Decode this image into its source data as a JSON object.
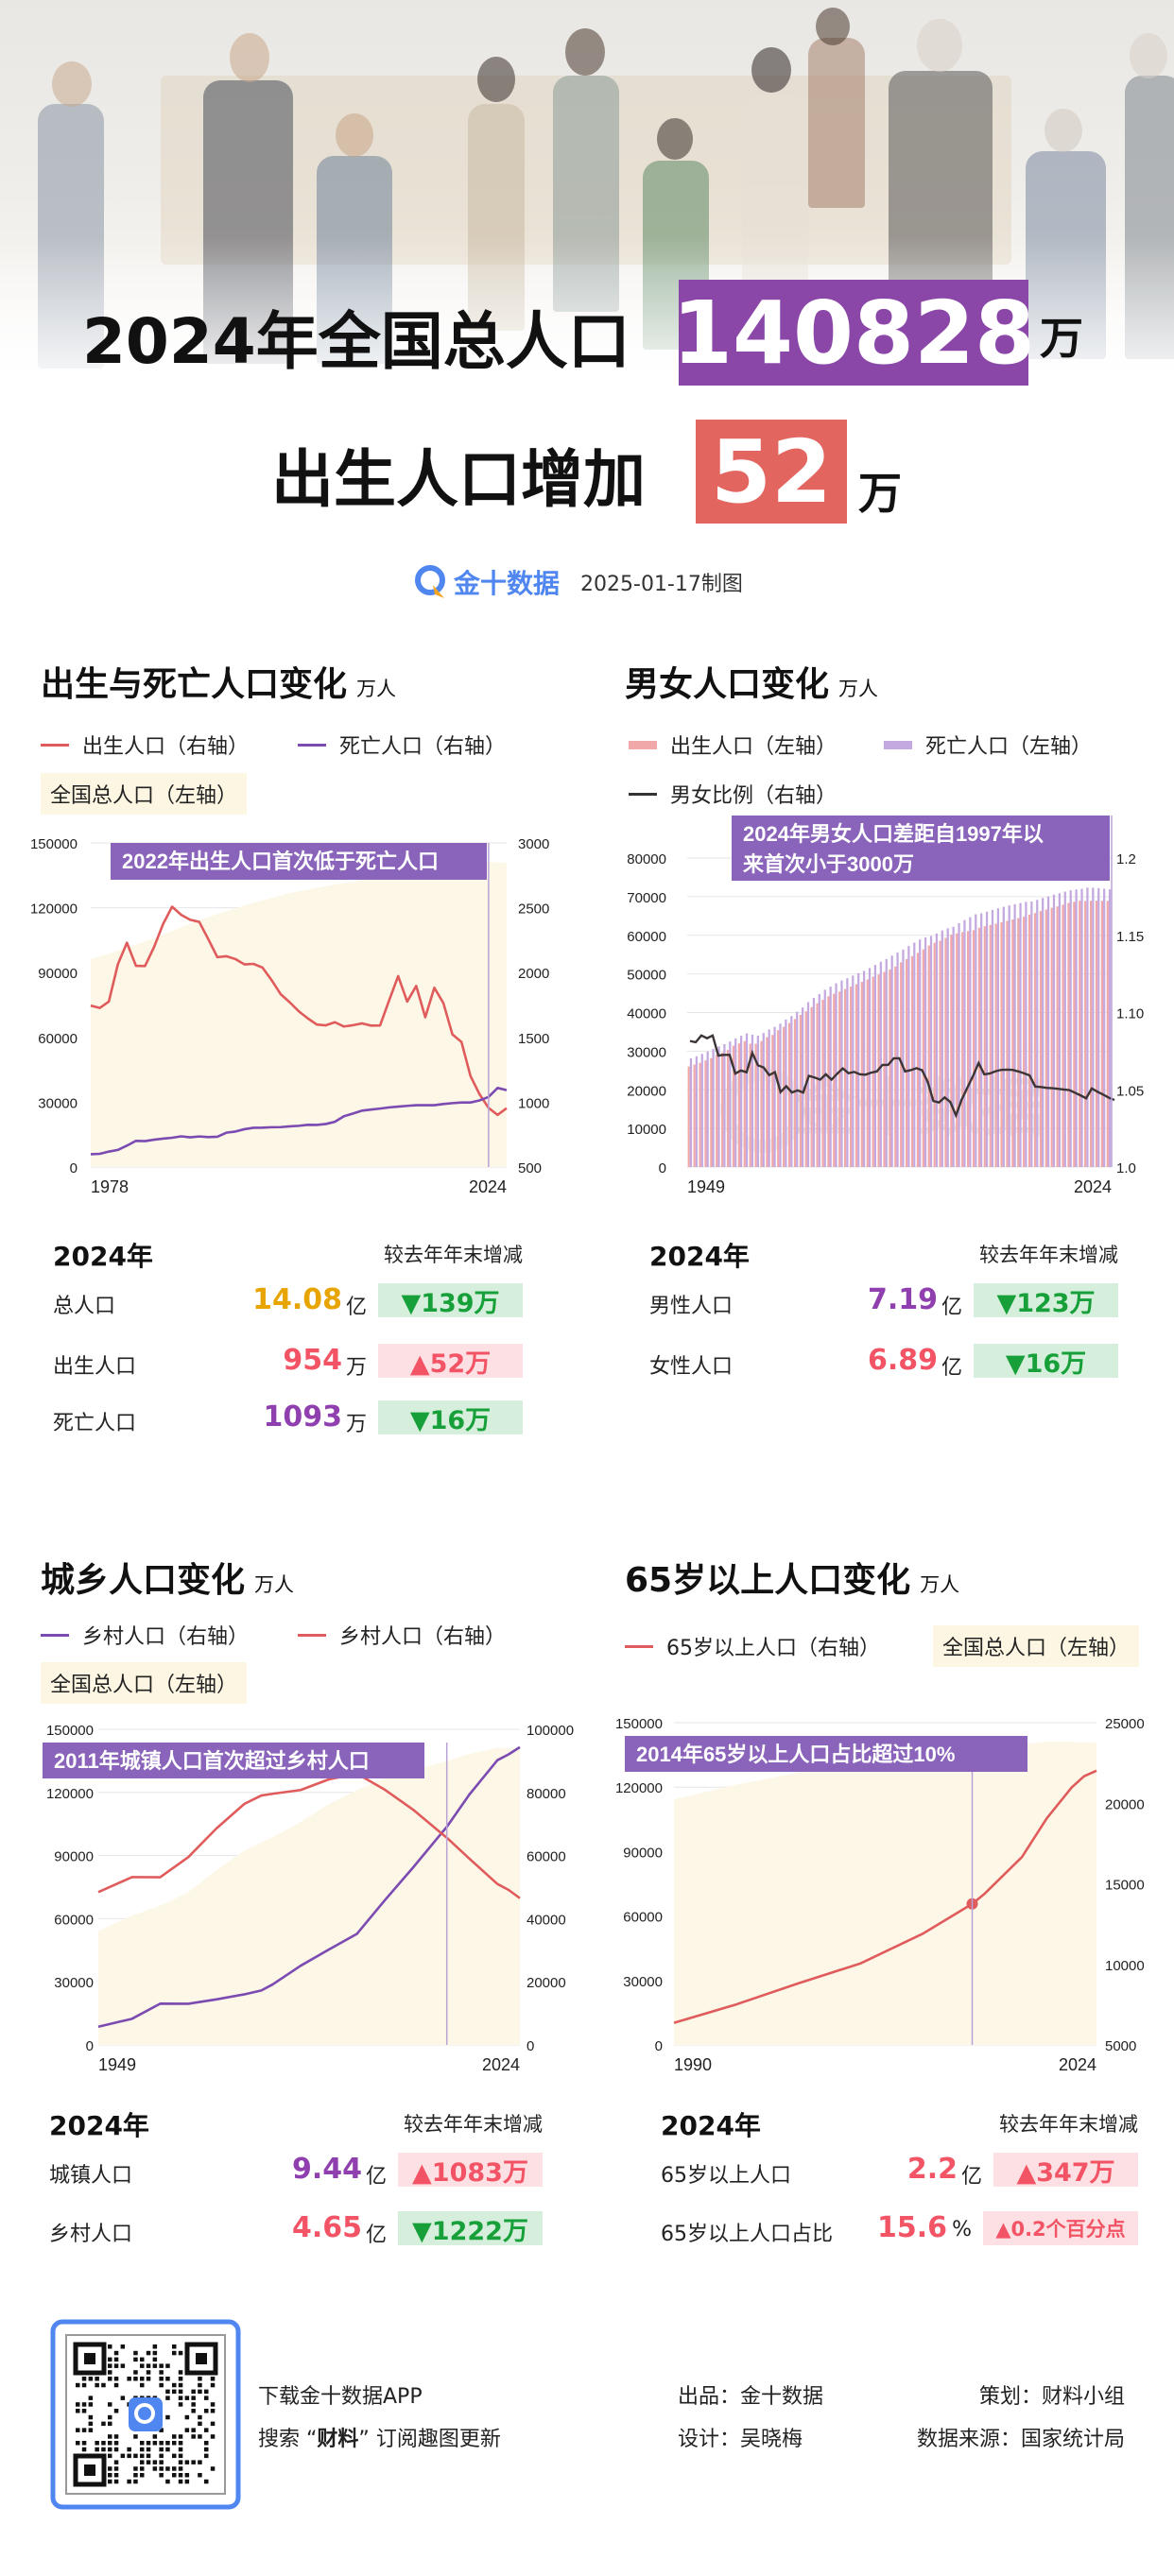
{
  "colors": {
    "purple_box": "#8b47a8",
    "red_box": "#e3655f",
    "annotation": "#8a64ba",
    "birth_line": "#e05c5c",
    "death_line": "#7b4bb2",
    "area": "#fdf7e7",
    "up_text": "#f25465",
    "down_text": "#17a03a",
    "value_yellow": "#e8a400",
    "value_purple": "#8f3fae",
    "value_red": "#f25465"
  },
  "hero": {
    "line1_text": "2024年全国总人口",
    "total_value": "140828",
    "line1_unit": "万",
    "line2_text": "出生人口增加",
    "birth_increase": "52",
    "line2_unit": "万",
    "brand": "金十数据",
    "date_caption": "2025-01-17制图"
  },
  "watermark": "金十数据",
  "sections": [
    {
      "title": "出生与死亡人口变化",
      "unit": "万人",
      "legend": [
        "出生人口（右轴）",
        "死亡人口（右轴）",
        "全国总人口（左轴）"
      ],
      "stats": {
        "year": "2024年",
        "compare": "较去年年末增减",
        "rows": [
          {
            "label": "总人口",
            "value": "14.08",
            "unit": "亿",
            "change": "▼139万",
            "dir": "down"
          },
          {
            "label": "出生人口",
            "value": "954",
            "unit": "万",
            "change": "▲52万",
            "dir": "up"
          },
          {
            "label": "死亡人口",
            "value": "1093",
            "unit": "万",
            "change": "▼16万",
            "dir": "down"
          }
        ]
      }
    },
    {
      "title": "男女人口变化",
      "unit": "万人",
      "legend": [
        "出生人口（左轴）",
        "死亡人口（左轴）",
        "男女比例（右轴）"
      ],
      "stats": {
        "year": "2024年",
        "compare": "较去年年末增减",
        "rows": [
          {
            "label": "男性人口",
            "value": "7.19",
            "unit": "亿",
            "change": "▼123万",
            "dir": "down"
          },
          {
            "label": "女性人口",
            "value": "6.89",
            "unit": "亿",
            "change": "▼16万",
            "dir": "down"
          }
        ]
      }
    },
    {
      "title": "城乡人口变化",
      "unit": "万人",
      "legend": [
        "乡村人口（右轴）",
        "乡村人口（右轴）",
        "全国总人口（左轴）"
      ],
      "stats": {
        "year": "2024年",
        "compare": "较去年年末增减",
        "rows": [
          {
            "label": "城镇人口",
            "value": "9.44",
            "unit": "亿",
            "change": "▲1083万",
            "dir": "up"
          },
          {
            "label": "乡村人口",
            "value": "4.65",
            "unit": "亿",
            "change": "▼1222万",
            "dir": "down"
          }
        ]
      }
    },
    {
      "title": "65岁以上人口变化",
      "unit": "万人",
      "legend": [
        "65岁以上人口（右轴）",
        "全国总人口（左轴）"
      ],
      "stats": {
        "year": "2024年",
        "compare": "较去年年末增减",
        "rows": [
          {
            "label": "65岁以上人口",
            "value": "2.2",
            "unit": "亿",
            "change": "▲347万",
            "dir": "up"
          },
          {
            "label": "65岁以上人口占比",
            "value": "15.6",
            "unit": "%",
            "change": "▲0.2个百分点",
            "dir": "up"
          }
        ]
      }
    }
  ],
  "chart_data": [
    {
      "type": "line",
      "x_labels": [
        "1978",
        "2024"
      ],
      "xlim": [
        1978,
        2024
      ],
      "left_axis": {
        "range": [
          0,
          150000
        ],
        "ticks": [
          "0",
          "30000",
          "60000",
          "90000",
          "120000",
          "150000"
        ]
      },
      "right_axis": {
        "range": [
          500,
          3000
        ],
        "ticks": [
          "500",
          "1000",
          "1500",
          "2000",
          "2500",
          "3000"
        ]
      },
      "annotation": {
        "lines": [
          "2022年出生人口首次低于死亡人口"
        ],
        "year": 2022
      },
      "series": [
        {
          "name": "全国总人口（左轴）",
          "kind": "area",
          "axis": "left",
          "color": "#fdf7e7",
          "x": [
            1978,
            1980,
            1985,
            1990,
            1995,
            2000,
            2005,
            2010,
            2015,
            2020,
            2021,
            2022,
            2023,
            2024
          ],
          "y": [
            96259,
            98705,
            105851,
            114333,
            121121,
            126743,
            130756,
            134091,
            138326,
            141212,
            141260,
            141175,
            140967,
            140828
          ]
        },
        {
          "name": "出生人口（右轴）",
          "kind": "line",
          "axis": "right",
          "color": "#e05c5c",
          "x_start": 1978,
          "y": [
            1745,
            1727,
            1776,
            2064,
            2230,
            2052,
            2050,
            2196,
            2374,
            2508,
            2445,
            2407,
            2391,
            2258,
            2119,
            2126,
            2104,
            2063,
            2067,
            2038,
            1942,
            1834,
            1771,
            1702,
            1647,
            1599,
            1593,
            1617,
            1584,
            1594,
            1608,
            1591,
            1592,
            1785,
            1973,
            1776,
            1897,
            1655,
            1883,
            1765,
            1523,
            1465,
            1202,
            1062,
            956,
            902,
            954
          ]
        },
        {
          "name": "死亡人口（右轴）",
          "kind": "line",
          "axis": "right",
          "color": "#7b4bb2",
          "x_start": 1978,
          "y": [
            599,
            602,
            619,
            632,
            665,
            702,
            700,
            711,
            719,
            726,
            737,
            729,
            736,
            731,
            734,
            765,
            774,
            792,
            803,
            804,
            807,
            808,
            814,
            818,
            826,
            825,
            832,
            849,
            892,
            913,
            935,
            943,
            951,
            960,
            966,
            972,
            977,
            977,
            977,
            986,
            993,
            998,
            998,
            1014,
            1041,
            1110,
            1093
          ]
        }
      ]
    },
    {
      "type": "bar",
      "x_labels": [
        "1949",
        "2024"
      ],
      "xlim": [
        1949,
        2024
      ],
      "left_axis": {
        "range": [
          0,
          80000
        ],
        "ticks": [
          "0",
          "10000",
          "20000",
          "30000",
          "40000",
          "50000",
          "60000",
          "70000",
          "80000"
        ]
      },
      "right_axis": {
        "range": [
          1.0,
          1.2
        ],
        "ticks": [
          "1.0",
          "1.05",
          "1.10",
          "1.15",
          "1.2"
        ]
      },
      "annotation": {
        "lines": [
          "2024年男女人口差距自1997年以",
          "来首次小于3000万"
        ],
        "year": 2024
      },
      "series": [
        {
          "name": "出生人口（左轴）",
          "kind": "bar",
          "axis": "left",
          "color": "#f0a8a8",
          "x_start": 1949,
          "y": [
            26022,
            26527,
            27000,
            27600,
            28200,
            29100,
            29656,
            30300,
            31400,
            32000,
            32600,
            31924,
            31900,
            32600,
            33600,
            34200,
            35410,
            36300,
            37300,
            38300,
            39400,
            40306,
            41400,
            42400,
            43300,
            44200,
            44856,
            45400,
            46100,
            46692,
            47350,
            47920,
            48553,
            49302,
            49856,
            50509,
            51126,
            51926,
            53010,
            53825,
            54605,
            55429,
            56357,
            57360,
            58045,
            58604,
            59313,
            60189,
            60495,
            60821,
            61094,
            61306,
            61955,
            62338,
            62671,
            63012,
            63381,
            63720,
            64081,
            64445,
            64803,
            65343,
            65755,
            66262,
            66663,
            67124,
            67469,
            67925,
            68361,
            68677,
            68969,
            68855,
            68949,
            68969,
            68935,
            68919
          ]
        },
        {
          "name": "死亡人口（左轴）",
          "kind": "bar",
          "axis": "left",
          "color": "#c3a9e0",
          "x_start": 1949,
          "y": [
            28145,
            28669,
            29300,
            29900,
            30600,
            31200,
            31809,
            32500,
            33300,
            34000,
            34600,
            34283,
            34000,
            34700,
            35600,
            36300,
            37128,
            38200,
            39100,
            40200,
            41300,
            42686,
            43800,
            44800,
            45900,
            46700,
            47564,
            48300,
            48900,
            49567,
            50192,
            50785,
            51519,
            52352,
            53152,
            53848,
            54725,
            55581,
            56290,
            57201,
            58099,
            58904,
            59466,
            59811,
            60472,
            61246,
            61808,
            62200,
            63131,
            63940,
            64692,
            65437,
            65672,
            66115,
            66556,
            66976,
            67375,
            67728,
            68048,
            68357,
            68647,
            68748,
            69161,
            69660,
            70063,
            70522,
            70857,
            71307,
            71650,
            71864,
            72039,
            72357,
            72311,
            72206,
            72032,
            71909
          ]
        },
        {
          "name": "男女比例（右轴）",
          "kind": "ratio_line",
          "axis": "right",
          "color": "#3d3535"
        }
      ]
    },
    {
      "type": "line",
      "x_labels": [
        "1949",
        "2024"
      ],
      "xlim": [
        1949,
        2024
      ],
      "left_axis": {
        "range": [
          0,
          150000
        ],
        "ticks": [
          "0",
          "30000",
          "60000",
          "90000",
          "120000",
          "150000"
        ]
      },
      "right_axis": {
        "range": [
          0,
          100000
        ],
        "ticks": [
          "0",
          "20000",
          "40000",
          "60000",
          "80000",
          "100000"
        ]
      },
      "annotation": {
        "lines": [
          "2011年城镇人口首次超过乡村人口"
        ],
        "year": 2011
      },
      "series": [
        {
          "name": "全国总人口（左轴）",
          "kind": "area",
          "axis": "left",
          "color": "#fdf7e7",
          "x": [
            1949,
            1955,
            1960,
            1965,
            1970,
            1975,
            1980,
            1985,
            1990,
            1995,
            2000,
            2005,
            2010,
            2015,
            2020,
            2024
          ],
          "y": [
            54167,
            61465,
            66207,
            72538,
            82992,
            92420,
            98705,
            105851,
            114333,
            121121,
            126743,
            130756,
            134091,
            138326,
            141212,
            140828
          ]
        },
        {
          "name": "乡村人口（右轴）",
          "kind": "line",
          "axis": "right",
          "color": "#7b4bb2",
          "x": [
            1949,
            1955,
            1960,
            1965,
            1970,
            1975,
            1978,
            1980,
            1985,
            1990,
            1995,
            2000,
            2005,
            2010,
            2011,
            2015,
            2020,
            2022,
            2024
          ],
          "y": [
            5765,
            8285,
            13073,
            13045,
            14424,
            16030,
            17245,
            19140,
            25094,
            30195,
            35174,
            45906,
            56212,
            66978,
            69079,
            79302,
            90220,
            92071,
            94350
          ]
        },
        {
          "name": "乡村人口（右轴）",
          "kind": "line",
          "axis": "right",
          "color": "#e05c5c",
          "x": [
            1949,
            1955,
            1960,
            1965,
            1970,
            1975,
            1978,
            1980,
            1985,
            1990,
            1995,
            2000,
            2005,
            2010,
            2011,
            2015,
            2020,
            2022,
            2024
          ],
          "y": [
            48402,
            53180,
            53134,
            59493,
            68568,
            76390,
            79014,
            79565,
            80757,
            84138,
            85947,
            80837,
            74544,
            67113,
            65656,
            59024,
            50992,
            49104,
            46478
          ]
        }
      ]
    },
    {
      "type": "line",
      "x_labels": [
        "1990",
        "2024"
      ],
      "xlim": [
        1990,
        2024
      ],
      "left_axis": {
        "range": [
          0,
          150000
        ],
        "ticks": [
          "0",
          "30000",
          "60000",
          "90000",
          "120000",
          "150000"
        ]
      },
      "right_axis": {
        "range": [
          5000,
          25000
        ],
        "ticks": [
          "5000",
          "10000",
          "15000",
          "20000",
          "25000"
        ]
      },
      "annotation": {
        "lines": [
          "2014年65岁以上人口占比超过10%"
        ],
        "year": 2014
      },
      "series": [
        {
          "name": "全国总人口（左轴）",
          "kind": "area",
          "axis": "left",
          "color": "#fdf7e7",
          "x": [
            1990,
            1995,
            2000,
            2005,
            2010,
            2015,
            2020,
            2024
          ],
          "y": [
            114333,
            121121,
            126743,
            130756,
            134091,
            138326,
            141212,
            140828
          ]
        },
        {
          "name": "65岁以上人口（右轴）",
          "kind": "line",
          "axis": "right",
          "color": "#e05c5c",
          "marker_year": 2014,
          "x": [
            1990,
            1995,
            2000,
            2005,
            2010,
            2014,
            2015,
            2018,
            2020,
            2022,
            2023,
            2024
          ],
          "y": [
            6368,
            7510,
            8821,
            10055,
            11894,
            13755,
            14386,
            16658,
            19064,
            20978,
            21676,
            22023
          ]
        }
      ]
    }
  ],
  "footer": {
    "download": "下载金十数据APP",
    "search_prefix": "搜索 “",
    "search_key": "财料",
    "search_suffix": "” 订阅趣图更新",
    "producer": "出品：金十数据",
    "planner": "策划：财料小组",
    "designer": "设计：吴晓梅",
    "source": "数据来源：国家统计局"
  }
}
